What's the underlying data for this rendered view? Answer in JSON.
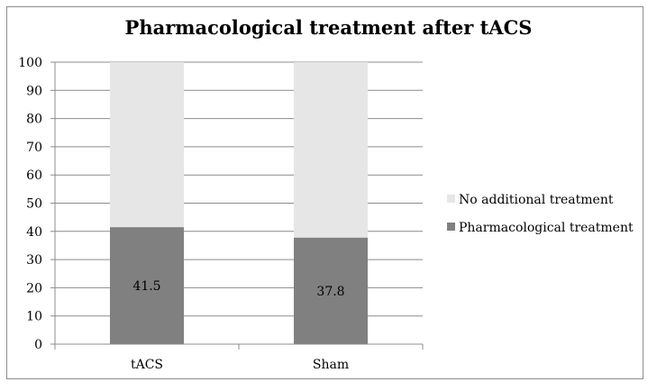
{
  "chart_data": {
    "type": "bar",
    "stacked": true,
    "title": "Pharmacological treatment after tACS",
    "categories": [
      "tACS",
      "Sham"
    ],
    "series": [
      {
        "name": "Pharmacological treatment",
        "values": [
          41.5,
          37.8
        ],
        "color": "#808080",
        "data_labels": [
          "41.5",
          "37.8"
        ]
      },
      {
        "name": "No additional treatment",
        "values": [
          58.5,
          62.2
        ],
        "color": "#e6e6e6"
      }
    ],
    "y_ticks": [
      "0",
      "10",
      "20",
      "30",
      "40",
      "50",
      "60",
      "70",
      "80",
      "90",
      "100"
    ],
    "ylim": [
      0,
      100
    ],
    "grid": true,
    "legend_position": "right"
  }
}
